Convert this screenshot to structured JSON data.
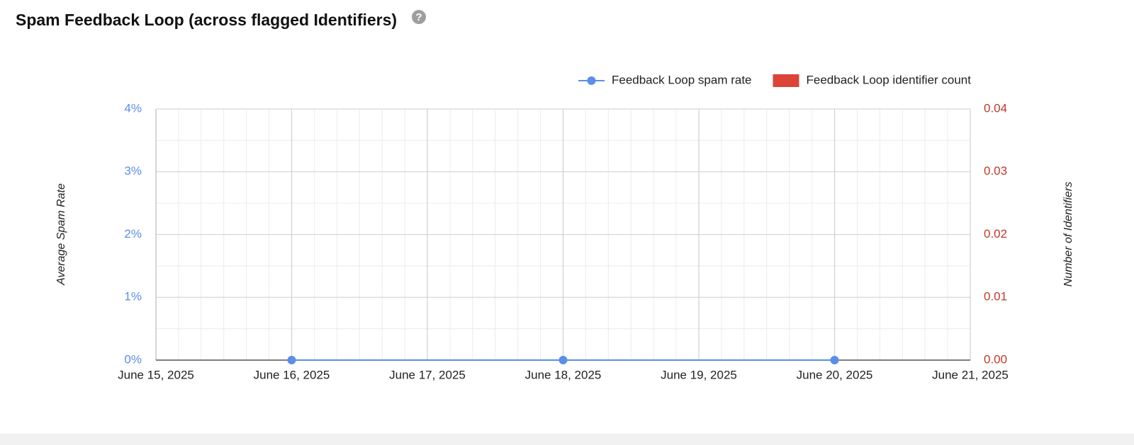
{
  "chart_data": {
    "type": "line",
    "title": "Spam Feedback Loop (across flagged Identifiers)",
    "y_label": "Average Spam Rate",
    "y2_label": "Number of Identifiers",
    "x": [
      "June 16, 2025",
      "June 18, 2025",
      "June 20, 2025"
    ],
    "xlim": [
      "June 15, 2025",
      "June 21, 2025"
    ],
    "xticks": [
      "June 15, 2025",
      "June 16, 2025",
      "June 17, 2025",
      "June 18, 2025",
      "June 19, 2025",
      "June 20, 2025",
      "June 21, 2025"
    ],
    "series": [
      {
        "name": "Feedback Loop spam rate",
        "color": "#5b8ee6",
        "type": "line",
        "values": [
          0,
          0,
          0
        ]
      },
      {
        "name": "Feedback Loop identifier count",
        "color": "#db4437",
        "type": "bar",
        "axis": "y2",
        "values": [
          0,
          0,
          0
        ]
      }
    ],
    "ylim": [
      0,
      4
    ],
    "yticks": [
      {
        "value": 0,
        "label": "0%"
      },
      {
        "value": 1,
        "label": "1%"
      },
      {
        "value": 2,
        "label": "2%"
      },
      {
        "value": 3,
        "label": "3%"
      },
      {
        "value": 4,
        "label": "4%"
      }
    ],
    "y2lim": [
      0,
      0.04
    ],
    "y2ticks": [
      {
        "value": 0,
        "label": "0.00"
      },
      {
        "value": 0.01,
        "label": "0.01"
      },
      {
        "value": 0.02,
        "label": "0.02"
      },
      {
        "value": 0.03,
        "label": "0.03"
      },
      {
        "value": 0.04,
        "label": "0.04"
      }
    ],
    "grid": true,
    "legend": "top-right"
  }
}
